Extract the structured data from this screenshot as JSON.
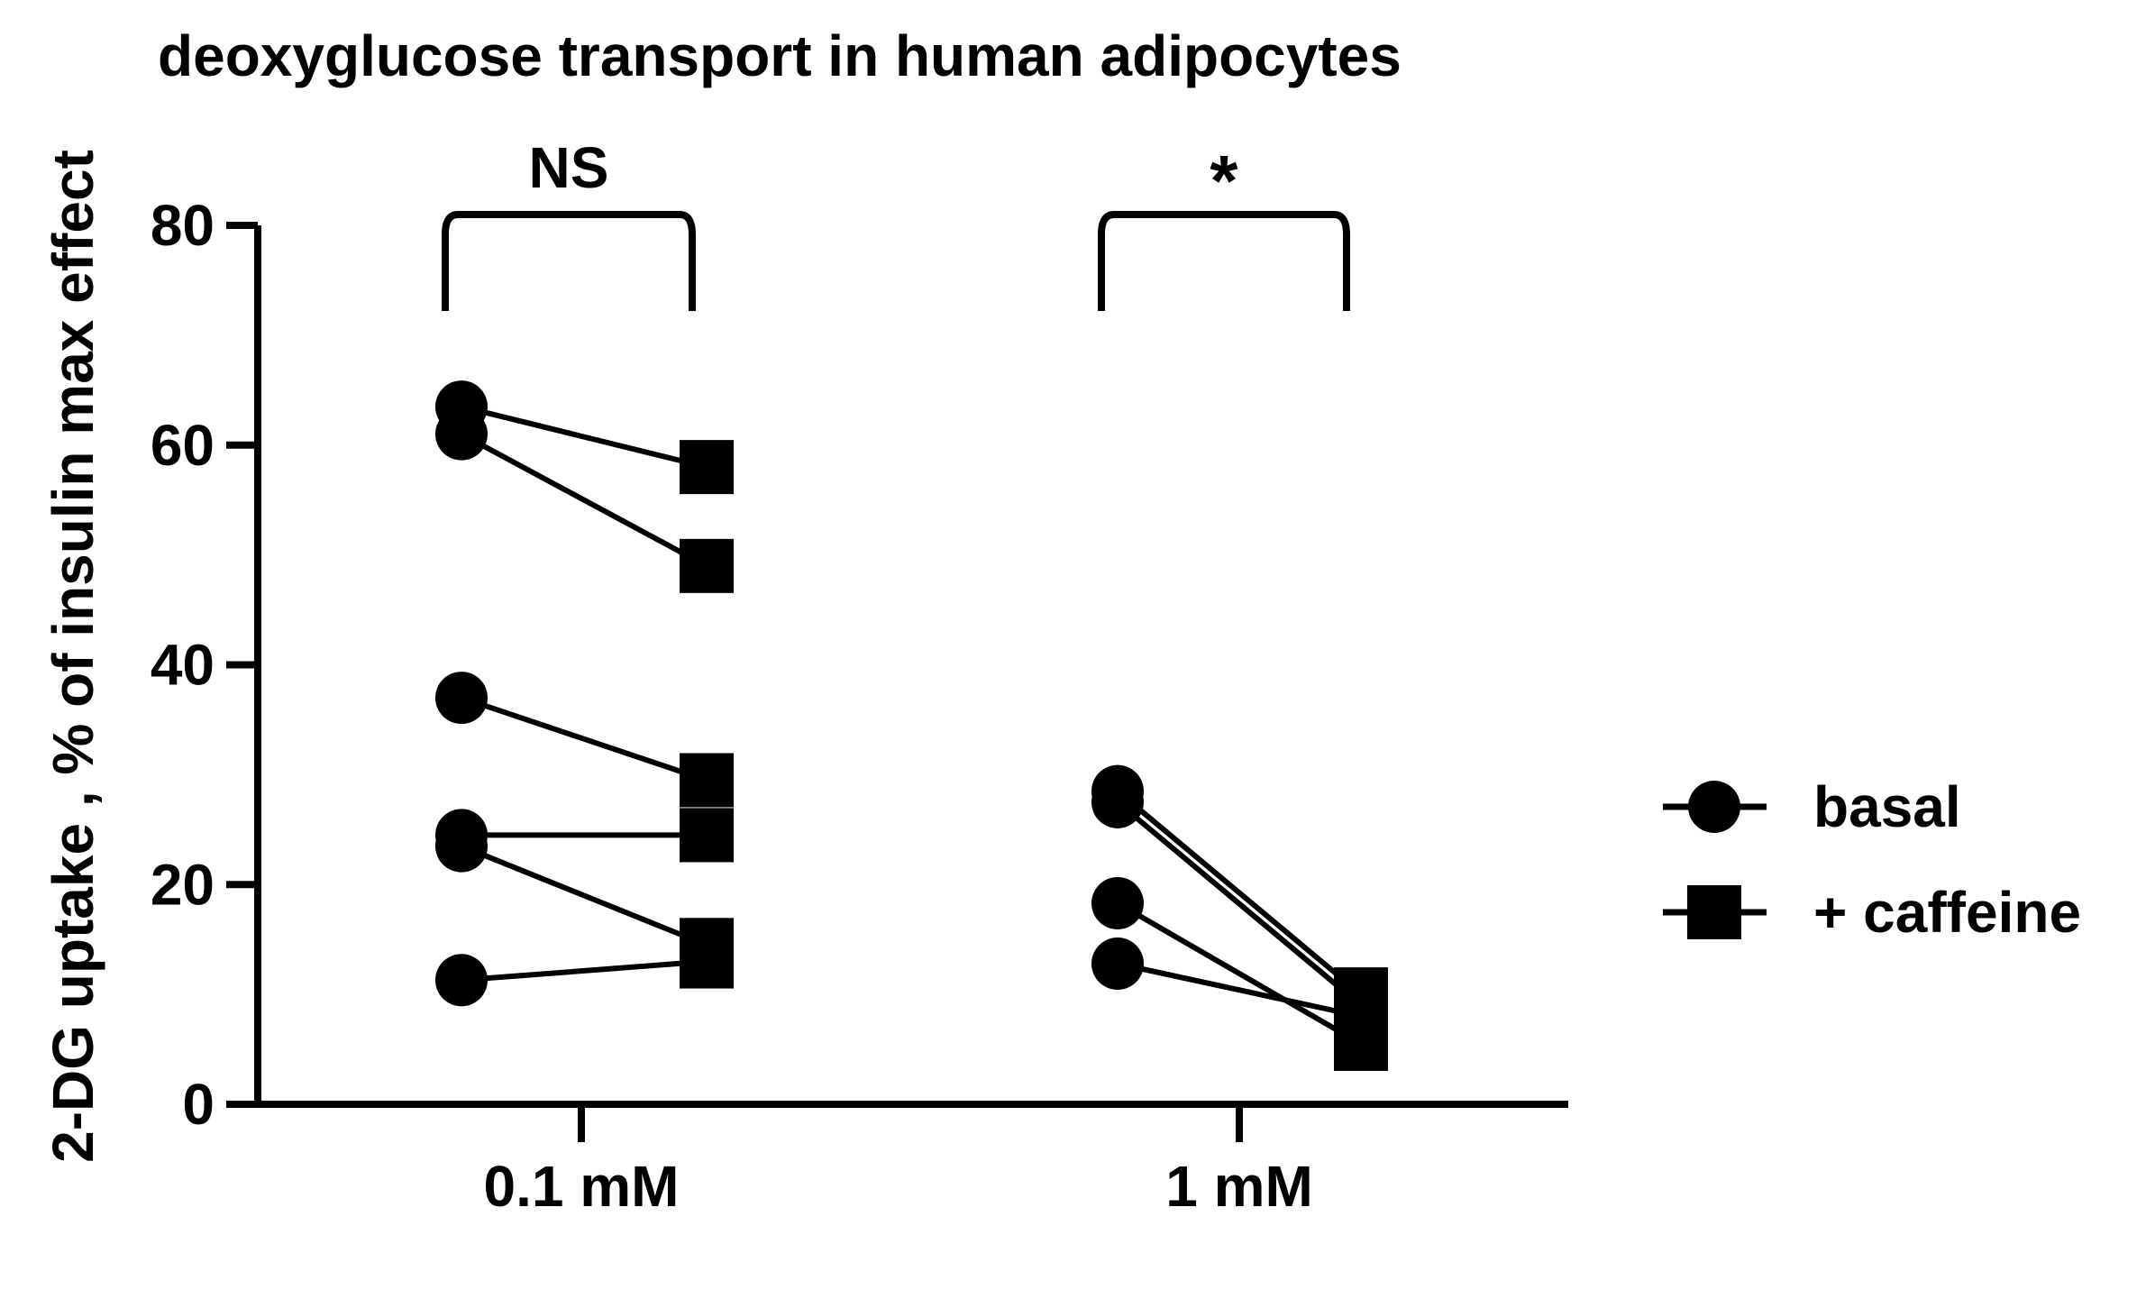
{
  "chart_data": {
    "type": "scatter",
    "title": "deoxyglucose transport in human adipocytes",
    "ylabel": "2-DG uptake , % of insulin max effect",
    "xlabel": "",
    "ylim": [
      0,
      80
    ],
    "yticks": [
      0,
      20,
      40,
      60,
      80
    ],
    "categories": [
      "0.1 mM",
      "1 mM"
    ],
    "grid": false,
    "legend_position": "right",
    "legend": [
      {
        "name": "basal",
        "marker": "circle"
      },
      {
        "name": "+ caffeine",
        "marker": "square"
      }
    ],
    "groups": [
      {
        "category": "0.1 mM",
        "significance": "NS",
        "pairs": [
          {
            "basal": 63.5,
            "caffeine": 58
          },
          {
            "basal": 61,
            "caffeine": 49
          },
          {
            "basal": 37,
            "caffeine": 29.5
          },
          {
            "basal": 24.5,
            "caffeine": 24.5
          },
          {
            "basal": 23.5,
            "caffeine": 14.5
          },
          {
            "basal": 11.3,
            "caffeine": 13
          }
        ]
      },
      {
        "category": "1 mM",
        "significance": "*",
        "pairs": [
          {
            "basal": 28.5,
            "caffeine": 10
          },
          {
            "basal": 27.5,
            "caffeine": 9
          },
          {
            "basal": 18.3,
            "caffeine": 5.5
          },
          {
            "basal": 12.8,
            "caffeine": 8
          }
        ]
      }
    ]
  }
}
